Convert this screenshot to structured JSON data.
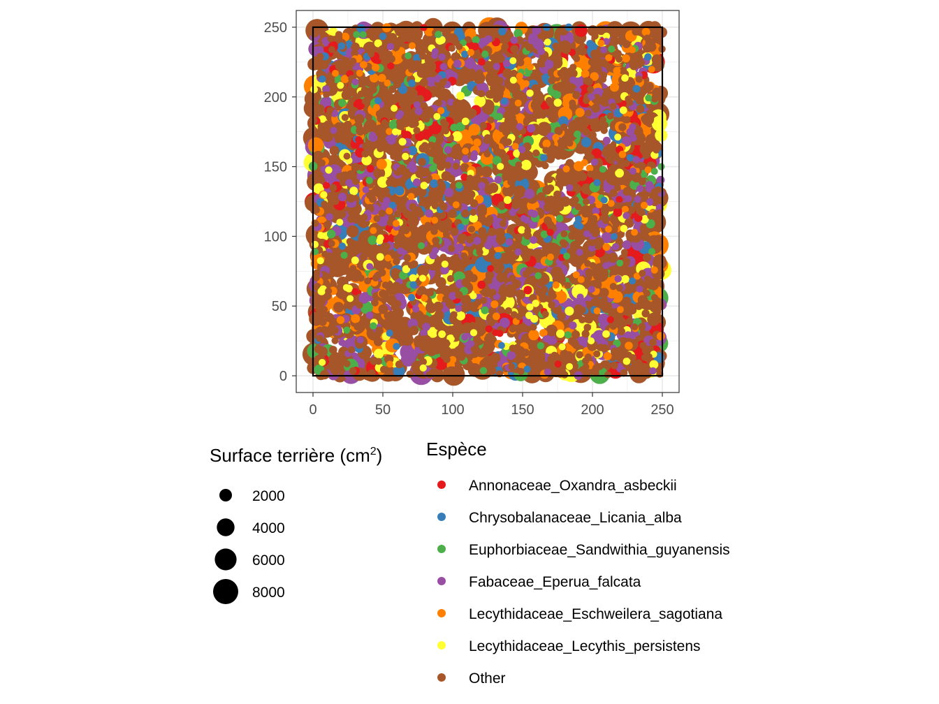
{
  "chart_data": {
    "type": "scatter",
    "title": "",
    "xlabel": "",
    "ylabel": "",
    "xlim": [
      -12,
      262
    ],
    "ylim": [
      -12,
      262
    ],
    "x_ticks": [
      0,
      50,
      100,
      150,
      200,
      250
    ],
    "y_ticks": [
      0,
      50,
      100,
      150,
      200,
      250
    ],
    "grid": true,
    "plot_window": {
      "x": [
        0,
        250
      ],
      "y": [
        0,
        250
      ]
    },
    "point_count_estimate": 3500,
    "size_legend": {
      "title": "Surface terrière (cm",
      "title_superscript": "2",
      "title_suffix": ")",
      "entries": [
        {
          "label": "2000",
          "value": 2000
        },
        {
          "label": "4000",
          "value": 4000
        },
        {
          "label": "6000",
          "value": 6000
        },
        {
          "label": "8000",
          "value": 8000
        }
      ]
    },
    "color_legend": {
      "title": "Espèce",
      "entries": [
        {
          "label": "Annonaceae_Oxandra_asbeckii",
          "color": "#E41A1C"
        },
        {
          "label": "Chrysobalanaceae_Licania_alba",
          "color": "#377EB8"
        },
        {
          "label": "Euphorbiaceae_Sandwithia_guyanensis",
          "color": "#4DAF4A"
        },
        {
          "label": "Fabaceae_Eperua_falcata",
          "color": "#984EA3"
        },
        {
          "label": "Lecythidaceae_Eschweilera_sagotiana",
          "color": "#FF7F00"
        },
        {
          "label": "Lecythidaceae_Lecythis_persistens",
          "color": "#FFFF33"
        },
        {
          "label": "Other",
          "color": "#A65628"
        }
      ]
    }
  }
}
